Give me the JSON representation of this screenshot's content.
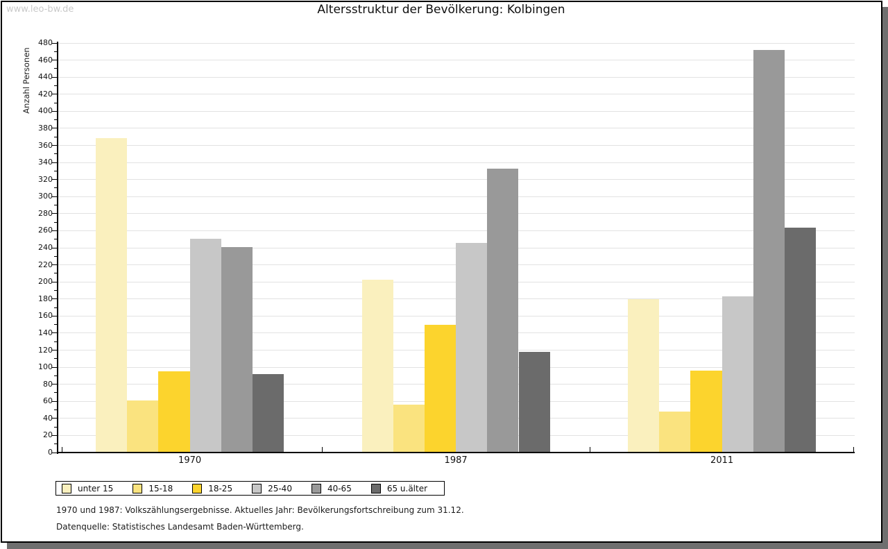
{
  "watermark": "www.leo-bw.de",
  "title": "Altersstruktur der Bevölkerung: Kolbingen",
  "chart_data": {
    "type": "bar",
    "title": "Altersstruktur der Bevölkerung: Kolbingen",
    "xlabel": "",
    "ylabel": "Anzahl Personen",
    "ylim": [
      0,
      480
    ],
    "ytick_step": 20,
    "ytick_minor_step": 10,
    "grid": true,
    "legend_position": "bottom",
    "categories": [
      "1970",
      "1987",
      "2011"
    ],
    "series": [
      {
        "name": "unter 15",
        "color": "#FAF0BE",
        "values": [
          368,
          202,
          179
        ]
      },
      {
        "name": "15-18",
        "color": "#FAE37F",
        "values": [
          60,
          55,
          47
        ]
      },
      {
        "name": "18-25",
        "color": "#FCD42D",
        "values": [
          94,
          149,
          95
        ]
      },
      {
        "name": "25-40",
        "color": "#C7C7C7",
        "values": [
          250,
          245,
          182
        ]
      },
      {
        "name": "40-65",
        "color": "#999999",
        "values": [
          240,
          332,
          471
        ]
      },
      {
        "name": "65 u.älter",
        "color": "#6B6B6B",
        "values": [
          91,
          117,
          263
        ]
      }
    ]
  },
  "footnotes": [
    "1970 und 1987: Volkszählungsergebnisse. Aktuelles Jahr: Bevölkerungsfortschreibung zum 31.12.",
    "Datenquelle: Statistisches Landesamt Baden-Württemberg."
  ],
  "colors": {
    "shadow": "#6F6F6F",
    "grid": "#E2E2E2",
    "axis": "#000000",
    "watermark": "#C9C9C9"
  }
}
